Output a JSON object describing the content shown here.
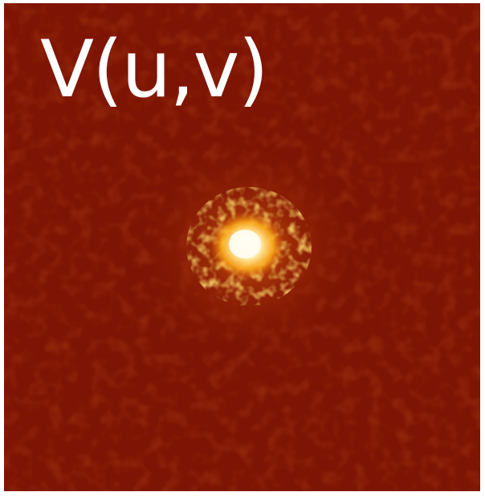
{
  "figure": {
    "label": "V(u,v)",
    "colors": {
      "background": "#7e1504",
      "background_dark": "#6e1003",
      "glow_mid": "#c4450a",
      "glow_bright": "#ffb01c",
      "core": "#fffbe8",
      "label_text": "#ffffff"
    }
  }
}
